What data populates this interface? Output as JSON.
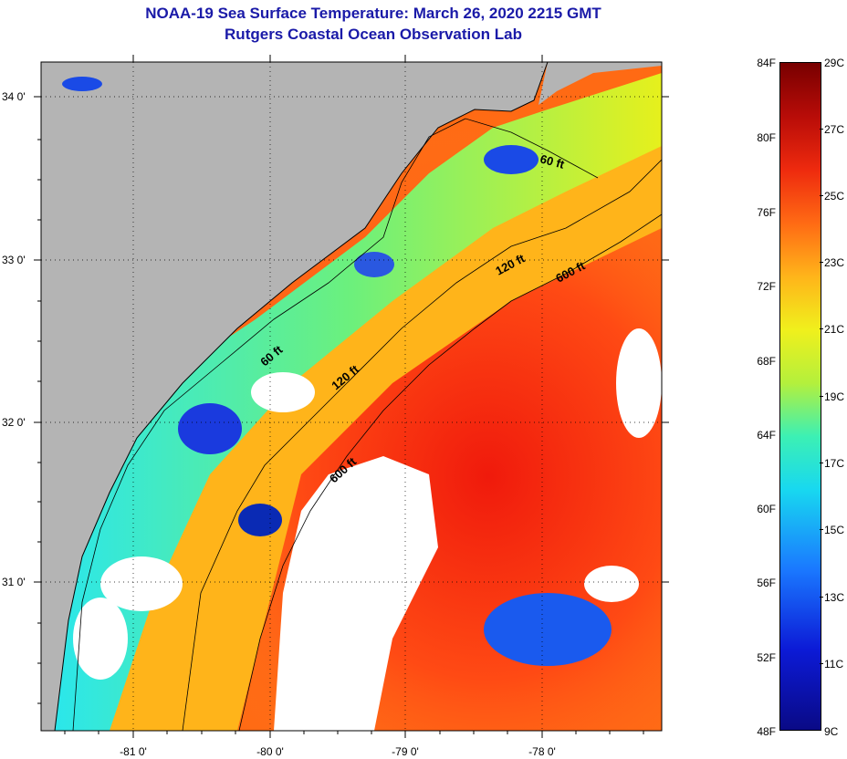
{
  "title_line1": "NOAA-19 Sea Surface Temperature:  March 26, 2020 2215 GMT",
  "title_line2": "Rutgers Coastal Ocean Observation Lab",
  "lat_labels": [
    "34 0'",
    "33 0'",
    "32 0'",
    "31 0'"
  ],
  "lon_labels": [
    "-81 0'",
    "-80 0'",
    "-79 0'",
    "-78 0'"
  ],
  "depth_labels": [
    "60 ft",
    "120 ft",
    "600 ft",
    "60 ft",
    "120 ft",
    "600 ft"
  ],
  "colorbar": {
    "fahrenheit": [
      "84F",
      "80F",
      "76F",
      "72F",
      "68F",
      "64F",
      "60F",
      "56F",
      "52F",
      "48F"
    ],
    "celsius": [
      "29C",
      "27C",
      "25C",
      "23C",
      "21C",
      "19C",
      "17C",
      "15C",
      "13C",
      "11C",
      "9C"
    ]
  },
  "colors": {
    "land": "#b4b4b4",
    "cloud": "#ffffff",
    "title": "#1a1aa8"
  }
}
